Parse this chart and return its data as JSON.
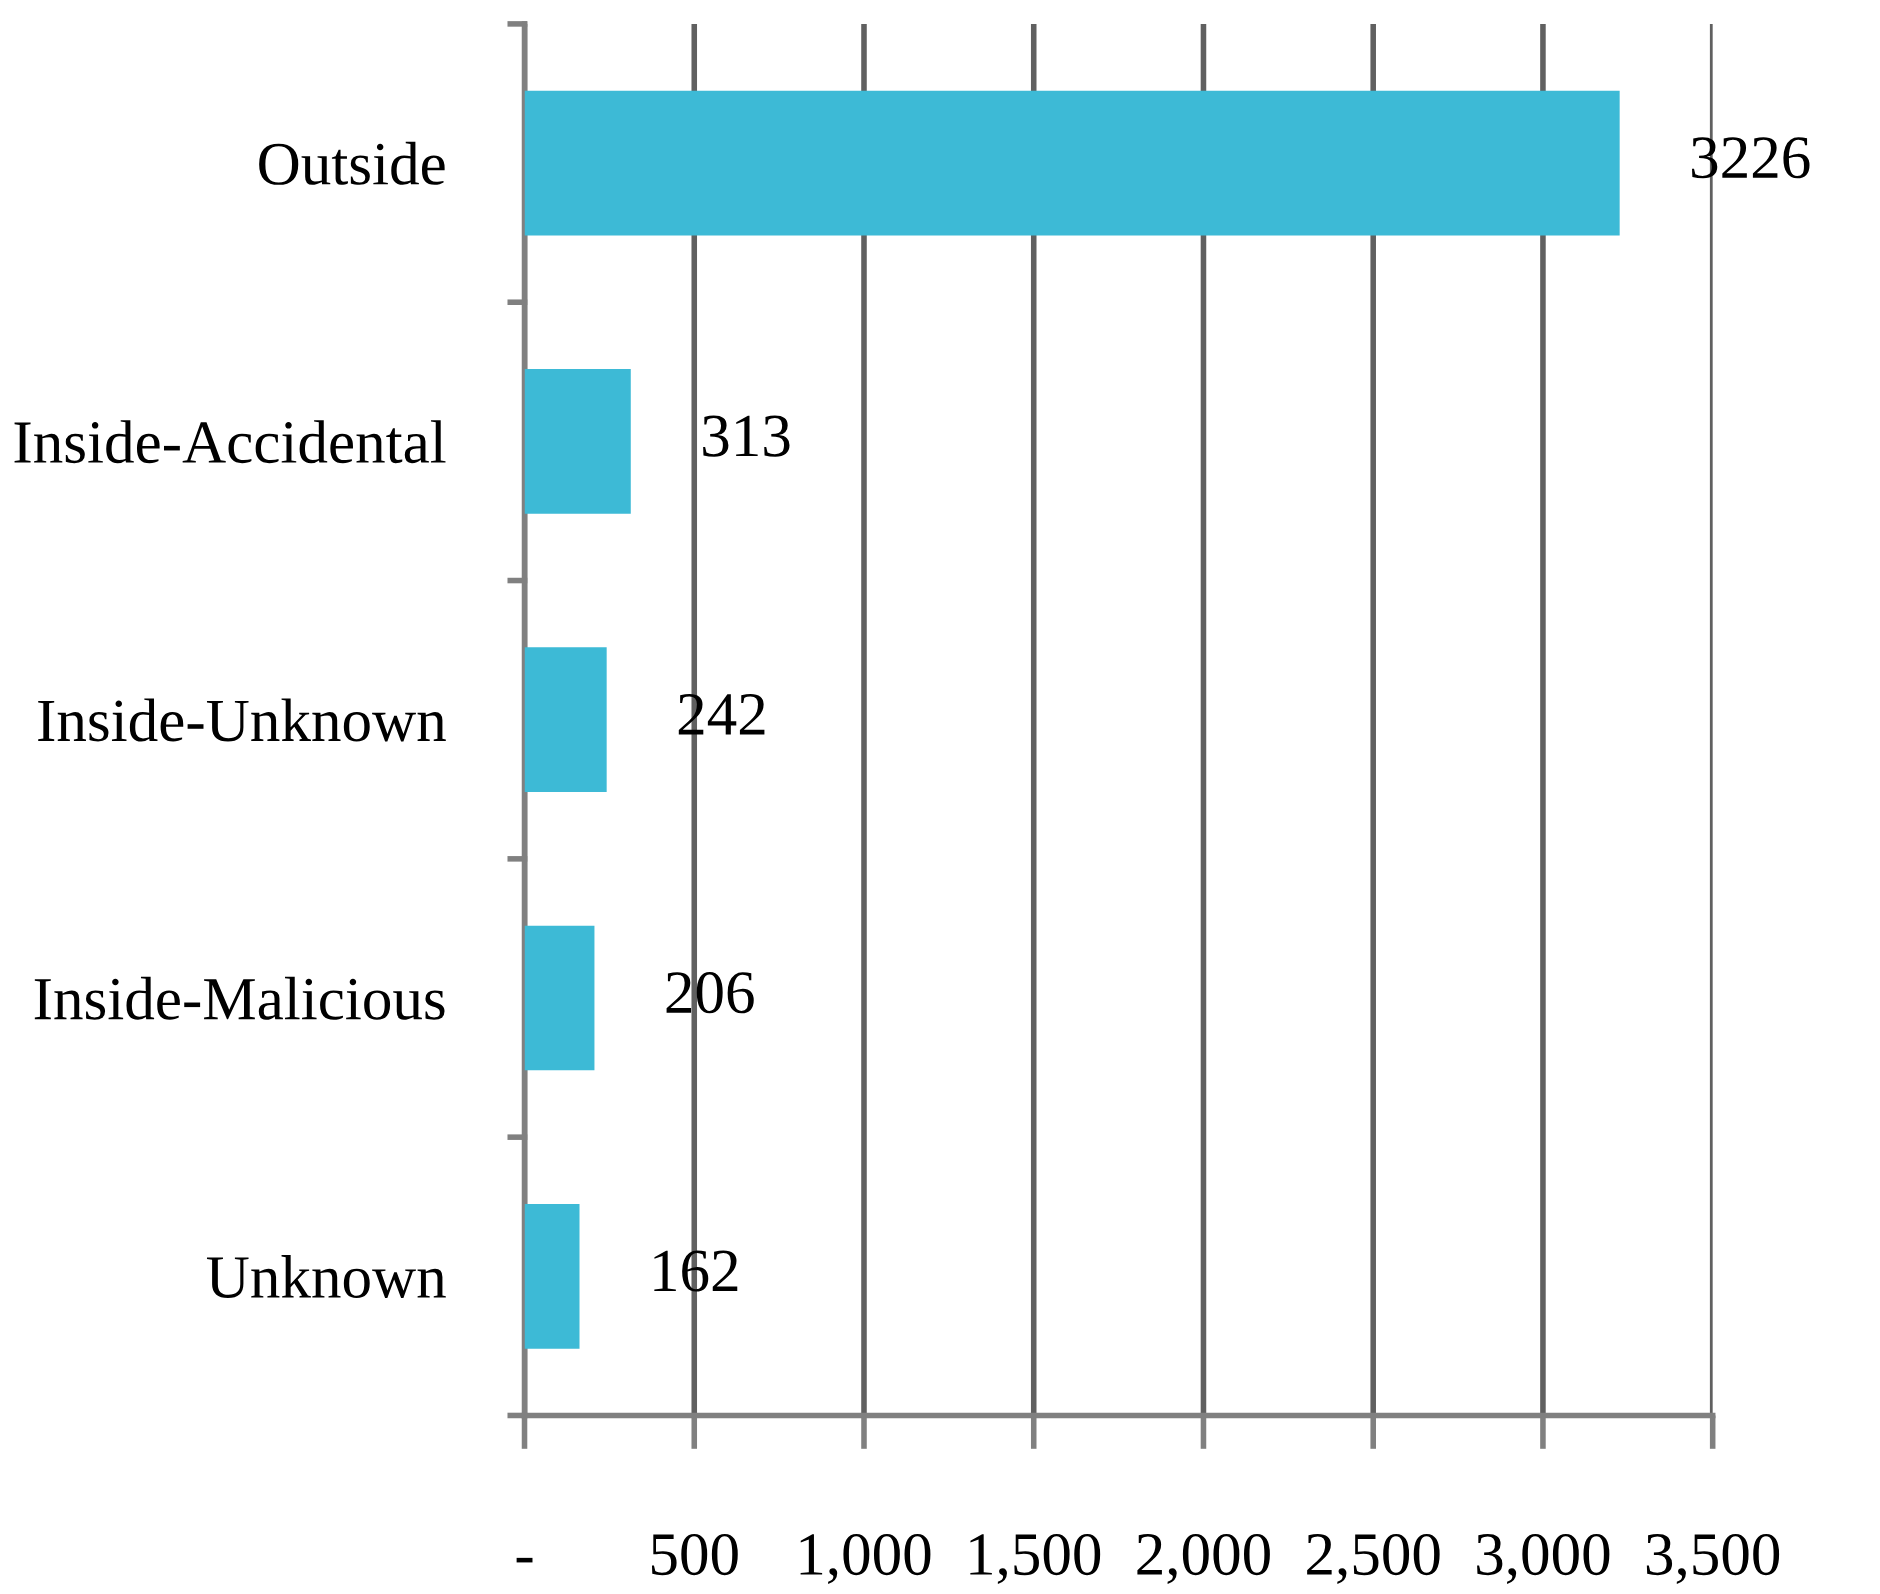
{
  "chart_data": {
    "type": "bar",
    "orientation": "horizontal",
    "categories": [
      "Outside",
      "Inside-Accidental",
      "Inside-Unknown",
      "Inside-Malicious",
      "Unknown"
    ],
    "values": [
      3226,
      313,
      242,
      206,
      162
    ],
    "color": "#3dbad6",
    "data_labels": true,
    "xlim": [
      0,
      3500
    ],
    "xticks": [
      {
        "value": 0,
        "label": "-"
      },
      500,
      {
        "value": 1000,
        "label": "1,000"
      },
      {
        "value": 1500,
        "label": "1,500"
      },
      {
        "value": 2000,
        "label": "2,000"
      },
      {
        "value": 2500,
        "label": "2,500"
      },
      {
        "value": 3000,
        "label": "3,000"
      },
      {
        "value": 3500,
        "label": "3,500"
      }
    ],
    "grid": "x"
  }
}
